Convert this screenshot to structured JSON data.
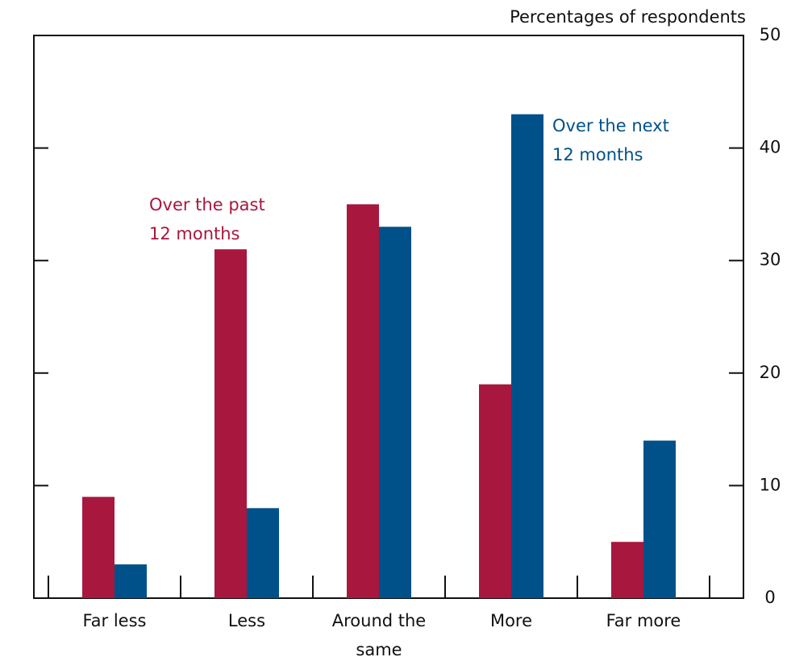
{
  "chart_data": {
    "type": "bar",
    "y_axis_label": "Percentages of respondents",
    "categories": [
      "Far less",
      "Less",
      "Around the same",
      "More",
      "Far more"
    ],
    "series": [
      {
        "name": "Over the past 12 months",
        "color": "#a8173d",
        "values": [
          9,
          31,
          35,
          19,
          5
        ]
      },
      {
        "name": "Over the next 12 months",
        "color": "#005189",
        "values": [
          3,
          8,
          33,
          43,
          14
        ]
      }
    ],
    "ylim": [
      0,
      50
    ],
    "yticks": [
      0,
      10,
      20,
      30,
      40,
      50
    ],
    "y_axis_side": "right"
  }
}
